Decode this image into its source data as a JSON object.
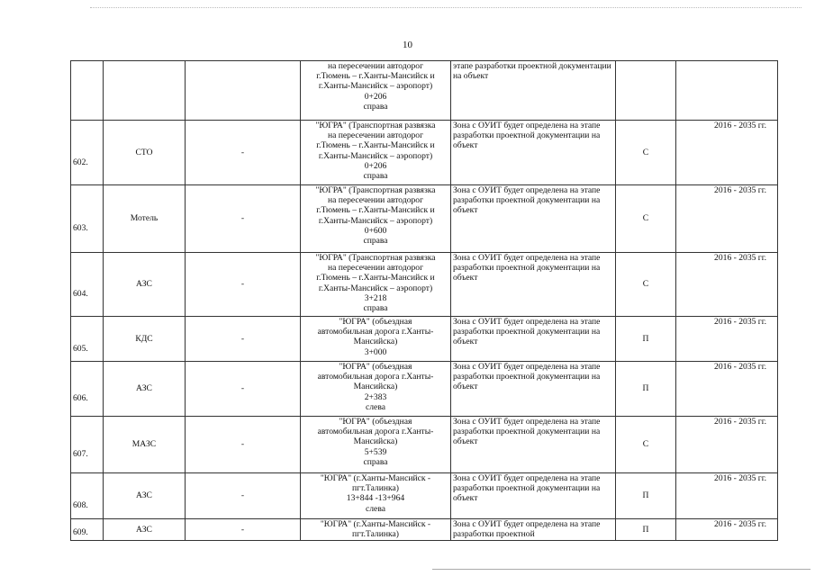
{
  "page_number": "10",
  "rows": [
    {
      "num": "",
      "name": "",
      "dash": "",
      "loc": [
        "на пересечении автодорог",
        "г.Тюмень – г.Ханты-Мансийск и",
        "г.Ханты-Мансийск – аэропорт)",
        "0+206",
        "справа"
      ],
      "zone": "этапе разработки проектной документации на объект",
      "letter": "",
      "years": ""
    },
    {
      "num": "602.",
      "name": "СТО",
      "dash": "-",
      "loc": [
        "\"ЮГРА\" (Транспортная развязка",
        "на пересечении автодорог",
        "г.Тюмень – г.Ханты-Мансийск и",
        "г.Ханты-Мансийск – аэропорт)",
        "0+206",
        "справа"
      ],
      "zone": "Зона с ОУИТ будет определена на этапе разработки проектной документации на объект",
      "letter": "С",
      "years": "2016 - 2035 гг."
    },
    {
      "num": "603.",
      "name": "Мотель",
      "dash": "-",
      "loc": [
        "\"ЮГРА\" (Транспортная развязка",
        "на пересечении автодорог",
        "г.Тюмень – г.Ханты-Мансийск и",
        "г.Ханты-Мансийск – аэропорт)",
        "0+600",
        "справа"
      ],
      "zone": "Зона с ОУИТ будет определена на этапе разработки проектной документации на объект",
      "letter": "С",
      "years": "2016 - 2035 гг."
    },
    {
      "num": "604.",
      "name": "АЗС",
      "dash": "-",
      "loc": [
        "\"ЮГРА\" (Транспортная развязка",
        "на пересечении автодорог",
        "г.Тюмень – г.Ханты-Мансийск и",
        "г.Ханты-Мансийск – аэропорт)",
        "3+218",
        "справа"
      ],
      "zone": "Зона с ОУИТ будет определена на этапе разработки проектной документации на объект",
      "letter": "С",
      "years": "2016 - 2035 гг."
    },
    {
      "num": "605.",
      "name": "КДС",
      "dash": "-",
      "loc": [
        "\"ЮГРА\" (объездная",
        "автомобильная дорога г.Ханты-",
        "Мансийска)",
        "3+000"
      ],
      "zone": "Зона с ОУИТ будет определена на этапе разработки проектной документации на объект",
      "letter": "П",
      "years": "2016 - 2035 гг."
    },
    {
      "num": "606.",
      "name": "АЗС",
      "dash": "-",
      "loc": [
        "\"ЮГРА\" (объездная",
        "автомобильная дорога г.Ханты-",
        "Мансийска)",
        "2+383",
        "слева"
      ],
      "zone": "Зона с ОУИТ будет определена на этапе разработки проектной документации на объект",
      "letter": "П",
      "years": "2016 - 2035 гг."
    },
    {
      "num": "607.",
      "name": "МАЗС",
      "dash": "-",
      "loc": [
        "\"ЮГРА\" (объездная",
        "автомобильная дорога г.Ханты-",
        "Мансийска)",
        "5+539",
        "справа"
      ],
      "zone": "Зона с ОУИТ будет определена на этапе разработки проектной документации на объект",
      "letter": "С",
      "years": "2016 - 2035 гг."
    },
    {
      "num": "608.",
      "name": "АЗС",
      "dash": "-",
      "loc": [
        "\"ЮГРА\" (г.Ханты-Мансийск -",
        "пгт.Талинка)",
        "13+844 -13+964",
        "слева"
      ],
      "zone": "Зона с ОУИТ будет определена на этапе разработки проектной документации на объект",
      "letter": "П",
      "years": "2016 - 2035 гг."
    },
    {
      "num": "609.",
      "name": "АЗС",
      "dash": "-",
      "loc": [
        "\"ЮГРА\" (г.Ханты-Мансийск -",
        "пгт.Талинка)"
      ],
      "zone": "Зона с ОУИТ будет определена на этапе разработки проектной",
      "letter": "П",
      "years": "2016 - 2035 гг."
    }
  ]
}
